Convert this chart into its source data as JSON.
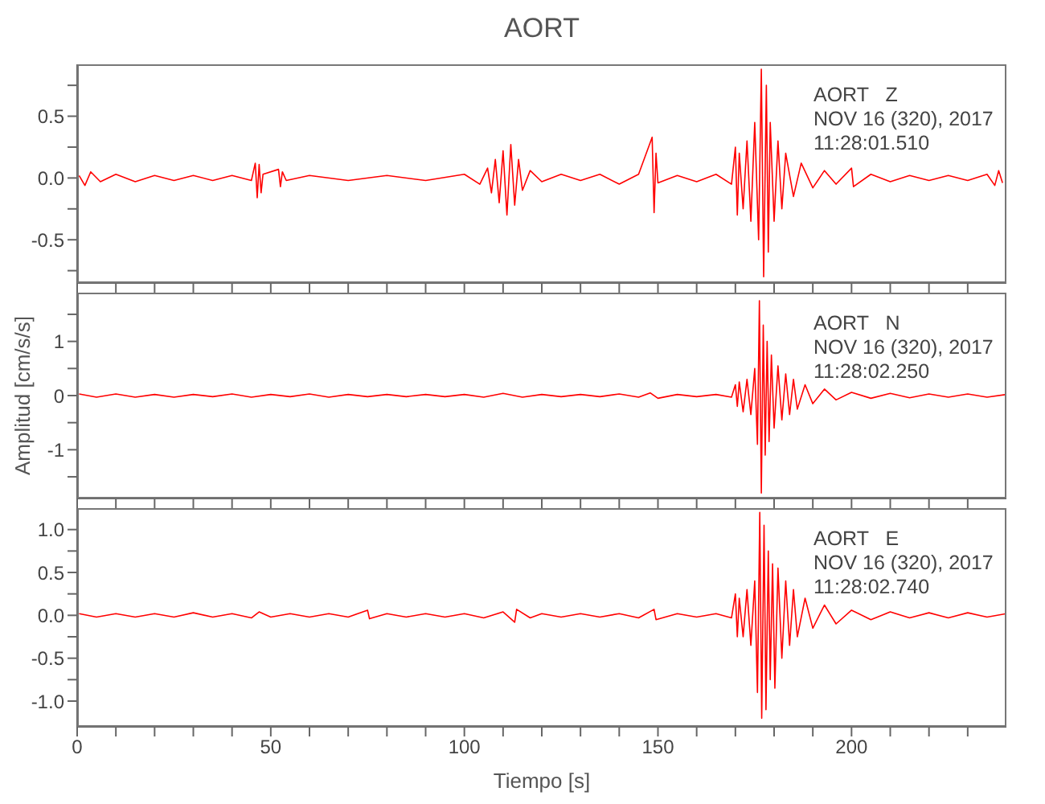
{
  "chart_data": [
    {
      "type": "line",
      "title": "AORT",
      "annotations": [
        "AORT   Z",
        "NOV 16 (320), 2017",
        "11:28:01.510"
      ],
      "x": [
        0.5,
        2,
        3.5,
        6,
        10,
        15,
        20,
        25,
        30,
        35,
        40,
        45,
        46,
        46.5,
        47,
        47.5,
        48,
        52,
        52.5,
        53,
        54,
        60,
        70,
        80,
        90,
        100,
        104,
        106,
        107,
        108,
        109,
        110,
        111,
        112,
        113,
        114,
        115,
        117,
        120,
        125,
        130,
        135,
        140,
        145,
        148.5,
        149,
        149.5,
        150,
        155,
        160,
        165,
        169,
        170,
        170.5,
        171,
        172,
        173,
        174,
        175,
        176,
        176.7,
        177.3,
        178,
        178.5,
        179,
        180,
        181,
        182,
        183,
        185,
        187,
        190,
        193,
        196,
        200,
        200.5,
        205,
        210,
        215,
        220,
        225,
        230,
        235,
        237,
        238,
        239
      ],
      "series": [
        {
          "color": "#ff0000",
          "values": [
            0.02,
            -0.06,
            0.05,
            -0.03,
            0.03,
            -0.03,
            0.02,
            -0.02,
            0.02,
            -0.02,
            0.02,
            -0.02,
            0.12,
            -0.16,
            0.11,
            -0.12,
            0.03,
            0.07,
            -0.07,
            0.05,
            -0.02,
            0.02,
            -0.02,
            0.02,
            -0.02,
            0.03,
            -0.05,
            0.08,
            -0.12,
            0.15,
            -0.2,
            0.22,
            -0.3,
            0.27,
            -0.22,
            0.15,
            -0.1,
            0.06,
            -0.03,
            0.03,
            -0.02,
            0.03,
            -0.05,
            0.03,
            0.33,
            -0.28,
            0.2,
            -0.04,
            0.02,
            -0.03,
            0.03,
            -0.05,
            0.25,
            -0.3,
            0.2,
            -0.25,
            0.3,
            -0.35,
            0.45,
            -0.5,
            0.88,
            -0.8,
            0.75,
            -0.6,
            0.45,
            -0.35,
            0.3,
            -0.25,
            0.2,
            -0.15,
            0.12,
            -0.08,
            0.06,
            -0.05,
            0.08,
            -0.07,
            0.03,
            -0.03,
            0.02,
            -0.02,
            0.02,
            -0.02,
            0.03,
            -0.06,
            0.06,
            -0.04
          ]
        }
      ],
      "xlim": [
        0,
        240
      ],
      "xticks": [
        0,
        {
          "value": 10,
          "label": null
        },
        {
          "value": 20,
          "label": null
        },
        {
          "value": 30,
          "label": null
        },
        {
          "value": 40,
          "label": null
        },
        50,
        {
          "value": 60,
          "label": null
        },
        {
          "value": 70,
          "label": null
        },
        {
          "value": 80,
          "label": null
        },
        {
          "value": 90,
          "label": null
        },
        100,
        {
          "value": 110,
          "label": null
        },
        {
          "value": 120,
          "label": null
        },
        {
          "value": 130,
          "label": null
        },
        {
          "value": 140,
          "label": null
        },
        150,
        {
          "value": 160,
          "label": null
        },
        {
          "value": 170,
          "label": null
        },
        {
          "value": 180,
          "label": null
        },
        {
          "value": 190,
          "label": null
        },
        200,
        {
          "value": 210,
          "label": null
        },
        {
          "value": 220,
          "label": null
        },
        {
          "value": 230,
          "label": null
        }
      ],
      "ylim": [
        -0.85,
        0.92
      ],
      "yticks": [
        {
          "value": -0.75,
          "label": null
        },
        {
          "value": -0.5,
          "label": "-0.5"
        },
        {
          "value": -0.25,
          "label": null
        },
        {
          "value": 0,
          "label": "0.0"
        },
        {
          "value": 0.25,
          "label": null
        },
        {
          "value": 0.5,
          "label": "0.5"
        },
        {
          "value": 0.75,
          "label": null
        }
      ],
      "tick_labels": "y"
    },
    {
      "type": "line",
      "ylabel": "Amplitud [cm/s/s]",
      "annotations": [
        "AORT   N",
        "NOV 16 (320), 2017",
        "11:28:02.250"
      ],
      "x": [
        0.5,
        5,
        10,
        15,
        20,
        25,
        30,
        35,
        40,
        45,
        50,
        55,
        60,
        65,
        70,
        75,
        80,
        85,
        90,
        95,
        100,
        105,
        110,
        115,
        120,
        125,
        130,
        135,
        140,
        145,
        148,
        150,
        155,
        160,
        165,
        169,
        170,
        170.5,
        171,
        172,
        173,
        174,
        175,
        175.7,
        176.2,
        176.7,
        177.2,
        177.7,
        178.2,
        178.7,
        179.3,
        180,
        181,
        182,
        183,
        184,
        185,
        186,
        188,
        190,
        193,
        196,
        200,
        205,
        210,
        215,
        220,
        225,
        230,
        235,
        240
      ],
      "series": [
        {
          "color": "#ff0000",
          "values": [
            0.03,
            -0.03,
            0.03,
            -0.03,
            0.02,
            -0.03,
            0.02,
            -0.02,
            0.03,
            -0.03,
            0.02,
            -0.02,
            0.03,
            -0.03,
            0.02,
            -0.02,
            0.02,
            -0.02,
            0.02,
            -0.02,
            0.02,
            -0.03,
            0.04,
            -0.03,
            0.02,
            -0.02,
            0.02,
            -0.02,
            0.03,
            -0.03,
            0.05,
            -0.05,
            0.02,
            -0.02,
            0.02,
            -0.03,
            0.2,
            -0.2,
            0.25,
            -0.3,
            0.3,
            -0.35,
            0.5,
            -0.9,
            1.75,
            -1.8,
            1.3,
            -1.1,
            1.0,
            -0.85,
            0.75,
            -0.6,
            0.55,
            -0.45,
            0.4,
            -0.35,
            0.3,
            -0.25,
            0.2,
            -0.15,
            0.12,
            -0.08,
            0.06,
            -0.05,
            0.04,
            -0.04,
            0.03,
            -0.03,
            0.03,
            -0.03,
            0.02
          ]
        }
      ],
      "xlim": [
        0,
        240
      ],
      "xticks": [
        0,
        {
          "value": 10,
          "label": null
        },
        {
          "value": 20,
          "label": null
        },
        {
          "value": 30,
          "label": null
        },
        {
          "value": 40,
          "label": null
        },
        50,
        {
          "value": 60,
          "label": null
        },
        {
          "value": 70,
          "label": null
        },
        {
          "value": 80,
          "label": null
        },
        {
          "value": 90,
          "label": null
        },
        100,
        {
          "value": 110,
          "label": null
        },
        {
          "value": 120,
          "label": null
        },
        {
          "value": 130,
          "label": null
        },
        {
          "value": 140,
          "label": null
        },
        150,
        {
          "value": 160,
          "label": null
        },
        {
          "value": 170,
          "label": null
        },
        {
          "value": 180,
          "label": null
        },
        {
          "value": 190,
          "label": null
        },
        200,
        {
          "value": 210,
          "label": null
        },
        {
          "value": 220,
          "label": null
        },
        {
          "value": 230,
          "label": null
        }
      ],
      "ylim": [
        -1.9,
        1.9
      ],
      "yticks": [
        {
          "value": -1.5,
          "label": null
        },
        -1,
        {
          "value": -0.5,
          "label": null
        },
        0,
        {
          "value": 0.5,
          "label": null
        },
        1,
        {
          "value": 1.5,
          "label": null
        }
      ],
      "tick_labels": "y"
    },
    {
      "type": "line",
      "xlabel": "Tiempo [s]",
      "annotations": [
        "AORT   E",
        "NOV 16 (320), 2017",
        "11:28:02.740"
      ],
      "x": [
        0.5,
        5,
        10,
        15,
        20,
        25,
        30,
        35,
        40,
        45,
        47,
        50,
        55,
        60,
        65,
        70,
        75,
        75.5,
        80,
        85,
        90,
        95,
        100,
        105,
        110,
        113,
        113.5,
        117,
        120,
        125,
        130,
        135,
        140,
        145,
        149,
        149.5,
        155,
        160,
        165,
        169,
        170,
        170.5,
        171,
        172,
        173,
        174,
        175,
        175.7,
        176.3,
        176.8,
        177.4,
        177.9,
        178.5,
        179,
        179.6,
        180.2,
        181,
        182,
        183,
        184,
        185,
        186,
        188,
        190,
        193,
        196,
        200,
        205,
        210,
        215,
        220,
        225,
        230,
        235,
        240
      ],
      "series": [
        {
          "color": "#ff0000",
          "values": [
            0.02,
            -0.02,
            0.02,
            -0.02,
            0.02,
            -0.02,
            0.03,
            -0.02,
            0.02,
            -0.03,
            0.04,
            -0.02,
            0.02,
            -0.02,
            0.02,
            -0.02,
            0.06,
            -0.04,
            0.02,
            -0.02,
            0.02,
            -0.02,
            0.02,
            -0.03,
            0.04,
            -0.08,
            0.07,
            -0.03,
            0.02,
            -0.02,
            0.02,
            -0.02,
            0.02,
            -0.03,
            0.07,
            -0.05,
            0.02,
            -0.02,
            0.02,
            -0.03,
            0.25,
            -0.25,
            0.2,
            -0.25,
            0.3,
            -0.35,
            0.4,
            -0.9,
            1.2,
            -1.2,
            1.05,
            -1.1,
            0.75,
            -0.75,
            0.6,
            -0.85,
            0.55,
            -0.5,
            0.4,
            -0.35,
            0.3,
            -0.25,
            0.2,
            -0.15,
            0.12,
            -0.1,
            0.06,
            -0.05,
            0.04,
            -0.03,
            0.03,
            -0.03,
            0.03,
            -0.02,
            0.02
          ]
        }
      ],
      "xlim": [
        0,
        240
      ],
      "xticks": [
        0,
        {
          "value": 10,
          "label": null
        },
        {
          "value": 20,
          "label": null
        },
        {
          "value": 30,
          "label": null
        },
        {
          "value": 40,
          "label": null
        },
        50,
        {
          "value": 60,
          "label": null
        },
        {
          "value": 70,
          "label": null
        },
        {
          "value": 80,
          "label": null
        },
        {
          "value": 90,
          "label": null
        },
        100,
        {
          "value": 110,
          "label": null
        },
        {
          "value": 120,
          "label": null
        },
        {
          "value": 130,
          "label": null
        },
        {
          "value": 140,
          "label": null
        },
        150,
        {
          "value": 160,
          "label": null
        },
        {
          "value": 170,
          "label": null
        },
        {
          "value": 180,
          "label": null
        },
        {
          "value": 190,
          "label": null
        },
        200,
        {
          "value": 210,
          "label": null
        },
        {
          "value": 220,
          "label": null
        },
        {
          "value": 230,
          "label": null
        }
      ],
      "ylim": [
        -1.3,
        1.25
      ],
      "yticks": [
        {
          "value": -1,
          "label": "-1.0"
        },
        {
          "value": -0.75,
          "label": null
        },
        {
          "value": -0.5,
          "label": "-0.5"
        },
        {
          "value": -0.25,
          "label": null
        },
        {
          "value": 0,
          "label": "0.0"
        },
        {
          "value": 0.25,
          "label": null
        },
        {
          "value": 0.5,
          "label": "0.5"
        },
        {
          "value": 0.75,
          "label": null
        },
        {
          "value": 1,
          "label": "1.0"
        }
      ]
    }
  ]
}
